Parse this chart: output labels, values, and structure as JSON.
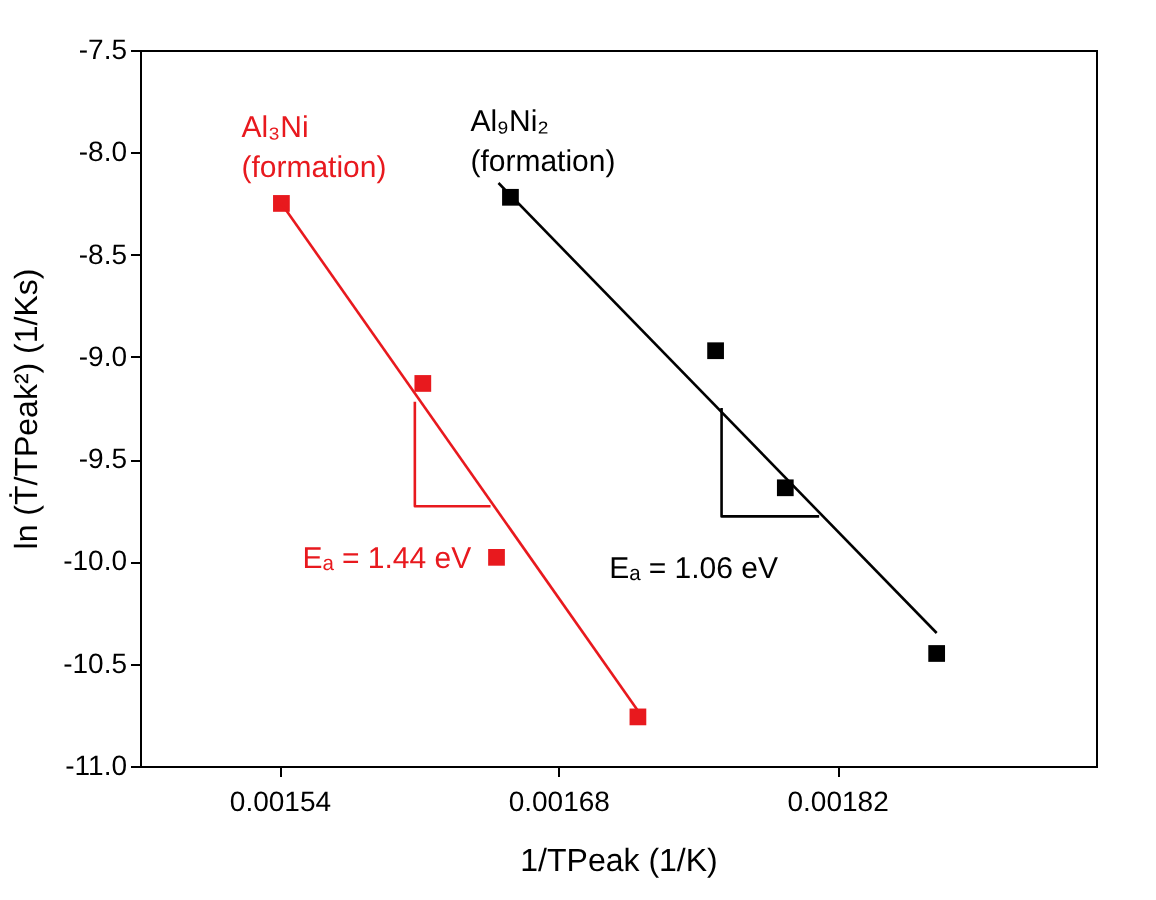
{
  "chart_data": {
    "type": "scatter",
    "xlabel": "1/TPeak (1/K)",
    "ylabel": "ln (Ṫ/TPeak²) (1/Ks)",
    "xlim": [
      0.00147,
      0.00195
    ],
    "ylim": [
      -11,
      -7.5
    ],
    "xticks": [
      0.00154,
      0.00168,
      0.00182
    ],
    "yticks": [
      {
        "value": -11,
        "label": "-11.0"
      },
      {
        "value": -10.5,
        "label": "-10.5"
      },
      {
        "value": -10,
        "label": "-10.0"
      },
      {
        "value": -9.5,
        "label": "-9.5"
      },
      {
        "value": -9,
        "label": "-9.0"
      },
      {
        "value": -8.5,
        "label": "-8.5"
      },
      {
        "value": -8,
        "label": "-8.0"
      },
      {
        "value": -7.5,
        "label": "-7.5"
      }
    ],
    "grid": false,
    "marker": "square",
    "series": [
      {
        "name": "Al₃Ni\n(formation)",
        "color": "#e8191e",
        "x": [
          0.001541,
          0.001612,
          0.001649,
          0.00172
        ],
        "values": [
          -8.25,
          -9.13,
          -9.98,
          -10.76
        ]
      },
      {
        "name": "Al₉Ni₂\n(formation)",
        "color": "#000000",
        "x": [
          0.001656,
          0.001759,
          0.001794,
          0.00187
        ],
        "values": [
          -8.22,
          -8.97,
          -9.64,
          -10.45
        ]
      },
      {
        "type": "line",
        "marker": "none",
        "color": "#e8191e",
        "x": [
          0.001541,
          0.00172
        ],
        "values": [
          -8.25,
          -10.73
        ]
      },
      {
        "type": "line",
        "marker": "none",
        "color": "#000000",
        "x": [
          0.00165,
          0.00187
        ],
        "values": [
          -8.15,
          -10.35
        ]
      },
      {
        "type": "line",
        "marker": "none",
        "color": "#e8191e",
        "x": [
          0.001608,
          0.001608,
          0.001646
        ],
        "values": [
          -9.22,
          -9.73,
          -9.73
        ]
      },
      {
        "type": "line",
        "marker": "none",
        "color": "#000000",
        "x": [
          0.001762,
          0.001762,
          0.001811
        ],
        "values": [
          -9.25,
          -9.78,
          -9.78
        ]
      }
    ],
    "annotations": [
      "Eₐ = 1.44 eV",
      "Eₐ = 1.06 eV"
    ]
  }
}
